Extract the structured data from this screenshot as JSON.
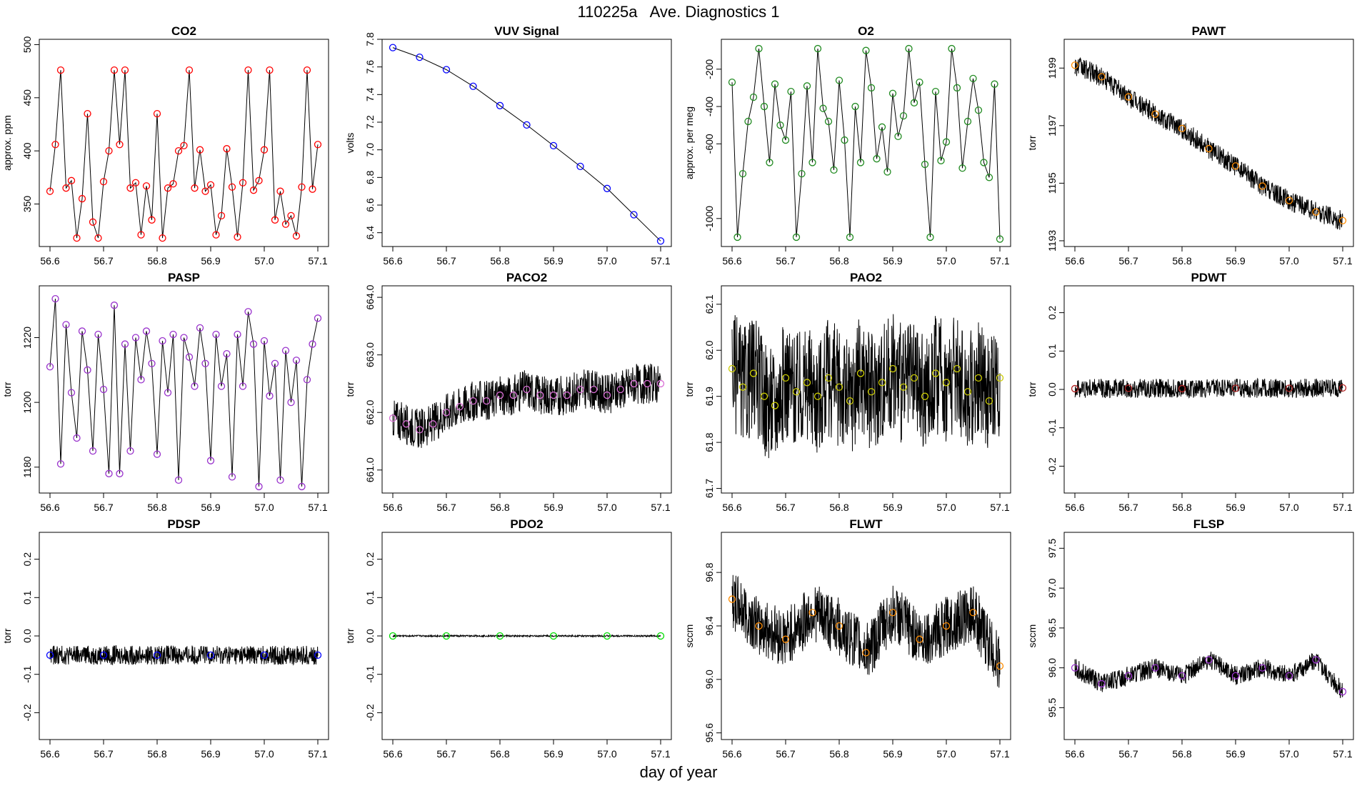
{
  "page": {
    "title": "110225a   Ave. Diagnostics 1",
    "xlabel": "day of year"
  },
  "chart_data": [
    {
      "type": "line",
      "title": "CO2",
      "ylabel": "approx. ppm",
      "xlim": [
        56.58,
        57.12
      ],
      "ylim": [
        310,
        505
      ],
      "xticks": [
        "56.6",
        "56.7",
        "56.8",
        "56.9",
        "57.0",
        "57.1"
      ],
      "yticks": [
        "350",
        "400",
        "450",
        "500"
      ],
      "color": "#ff0000",
      "x": [
        56.6,
        56.61,
        56.62,
        56.63,
        56.64,
        56.65,
        56.66,
        56.67,
        56.68,
        56.69,
        56.7,
        56.71,
        56.72,
        56.73,
        56.74,
        56.75,
        56.76,
        56.77,
        56.78,
        56.79,
        56.8,
        56.81,
        56.82,
        56.83,
        56.84,
        56.85,
        56.86,
        56.87,
        56.88,
        56.89,
        56.9,
        56.91,
        56.92,
        56.93,
        56.94,
        56.95,
        56.96,
        56.97,
        56.98,
        56.99,
        57.0,
        57.01,
        57.02,
        57.03,
        57.04,
        57.05,
        57.06,
        57.07,
        57.08,
        57.09,
        57.1
      ],
      "y": [
        362,
        406,
        476,
        365,
        372,
        318,
        355,
        435,
        333,
        318,
        371,
        400,
        476,
        406,
        476,
        365,
        370,
        321,
        367,
        335,
        435,
        318,
        365,
        369,
        400,
        405,
        476,
        365,
        401,
        362,
        368,
        321,
        339,
        402,
        366,
        319,
        370,
        476,
        363,
        372,
        401,
        476,
        335,
        362,
        331,
        339,
        320,
        366,
        476,
        364,
        406
      ]
    },
    {
      "type": "line",
      "title": "VUV Signal",
      "ylabel": "volts",
      "xlim": [
        56.58,
        57.12
      ],
      "ylim": [
        6.3,
        7.8
      ],
      "xticks": [
        "56.6",
        "56.7",
        "56.8",
        "56.9",
        "57.0",
        "57.1"
      ],
      "yticks": [
        "6.4",
        "6.6",
        "6.8",
        "7.0",
        "7.2",
        "7.4",
        "7.6",
        "7.8"
      ],
      "color": "#0000ff",
      "x": [
        56.6,
        56.65,
        56.7,
        56.75,
        56.8,
        56.85,
        56.9,
        56.95,
        57.0,
        57.05,
        57.1
      ],
      "y": [
        7.74,
        7.67,
        7.58,
        7.46,
        7.32,
        7.18,
        7.03,
        6.88,
        6.72,
        6.53,
        6.34
      ]
    },
    {
      "type": "line",
      "title": "O2",
      "ylabel": "approx. per meg",
      "xlim": [
        56.58,
        57.12
      ],
      "ylim": [
        -1150,
        -40
      ],
      "xticks": [
        "56.6",
        "56.7",
        "56.8",
        "56.9",
        "57.0",
        "57.1"
      ],
      "yticks": [
        "-1000",
        "-600",
        "-400",
        "-200"
      ],
      "color": "#228b22",
      "x": [
        56.6,
        56.61,
        56.62,
        56.63,
        56.64,
        56.65,
        56.66,
        56.67,
        56.68,
        56.69,
        56.7,
        56.71,
        56.72,
        56.73,
        56.74,
        56.75,
        56.76,
        56.77,
        56.78,
        56.79,
        56.8,
        56.81,
        56.82,
        56.83,
        56.84,
        56.85,
        56.86,
        56.87,
        56.88,
        56.89,
        56.9,
        56.91,
        56.92,
        56.93,
        56.94,
        56.95,
        56.96,
        56.97,
        56.98,
        56.99,
        57.0,
        57.01,
        57.02,
        57.03,
        57.04,
        57.05,
        57.06,
        57.07,
        57.08,
        57.09,
        57.1
      ],
      "y": [
        -270,
        -1100,
        -760,
        -480,
        -350,
        -90,
        -400,
        -700,
        -280,
        -500,
        -580,
        -320,
        -1100,
        -760,
        -290,
        -700,
        -90,
        -410,
        -480,
        -740,
        -260,
        -580,
        -1100,
        -400,
        -700,
        -100,
        -300,
        -680,
        -510,
        -750,
        -330,
        -560,
        -450,
        -90,
        -380,
        -270,
        -710,
        -1100,
        -320,
        -690,
        -590,
        -90,
        -300,
        -730,
        -480,
        -250,
        -420,
        -700,
        -780,
        -280,
        -1110
      ]
    },
    {
      "type": "line",
      "title": "PAWT",
      "ylabel": "torr",
      "xlim": [
        56.58,
        57.12
      ],
      "ylim": [
        1192.8,
        1200
      ],
      "xticks": [
        "56.6",
        "56.7",
        "56.8",
        "56.9",
        "57.0",
        "57.1"
      ],
      "yticks": [
        "1193",
        "1195",
        "1197",
        "1199"
      ],
      "color": "#ff8c00",
      "x": [
        56.6,
        56.65,
        56.7,
        56.75,
        56.8,
        56.85,
        56.9,
        56.95,
        57.0,
        57.05,
        57.1
      ],
      "y": [
        1199.1,
        1198.7,
        1198.0,
        1197.4,
        1196.9,
        1196.2,
        1195.6,
        1194.9,
        1194.4,
        1194.0,
        1193.7
      ]
    },
    {
      "type": "line",
      "title": "PASP",
      "ylabel": "torr",
      "xlim": [
        56.58,
        57.12
      ],
      "ylim": [
        1172,
        1236
      ],
      "xticks": [
        "56.6",
        "56.7",
        "56.8",
        "56.9",
        "57.0",
        "57.1"
      ],
      "yticks": [
        "1180",
        "1200",
        "1220"
      ],
      "color": "#9932cc",
      "x": [
        56.6,
        56.61,
        56.62,
        56.63,
        56.64,
        56.65,
        56.66,
        56.67,
        56.68,
        56.69,
        56.7,
        56.71,
        56.72,
        56.73,
        56.74,
        56.75,
        56.76,
        56.77,
        56.78,
        56.79,
        56.8,
        56.81,
        56.82,
        56.83,
        56.84,
        56.85,
        56.86,
        56.87,
        56.88,
        56.89,
        56.9,
        56.91,
        56.92,
        56.93,
        56.94,
        56.95,
        56.96,
        56.97,
        56.98,
        56.99,
        57.0,
        57.01,
        57.02,
        57.03,
        57.04,
        57.05,
        57.06,
        57.07,
        57.08,
        57.09,
        57.1
      ],
      "y": [
        1211,
        1232,
        1181,
        1224,
        1203,
        1189,
        1222,
        1210,
        1185,
        1221,
        1204,
        1178,
        1230,
        1178,
        1218,
        1185,
        1220,
        1207,
        1222,
        1212,
        1184,
        1219,
        1203,
        1221,
        1176,
        1220,
        1214,
        1205,
        1223,
        1212,
        1182,
        1221,
        1205,
        1215,
        1177,
        1221,
        1205,
        1228,
        1218,
        1174,
        1219,
        1202,
        1212,
        1176,
        1216,
        1200,
        1213,
        1174,
        1207,
        1218,
        1226
      ]
    },
    {
      "type": "line",
      "title": "PACO2",
      "ylabel": "torr",
      "xlim": [
        56.58,
        57.12
      ],
      "ylim": [
        660.6,
        664.2
      ],
      "xticks": [
        "56.6",
        "56.7",
        "56.8",
        "56.9",
        "57.0",
        "57.1"
      ],
      "yticks": [
        "661.0",
        "662.0",
        "663.0",
        "664.0"
      ],
      "color": "#da70d6",
      "x": [
        56.6,
        56.625,
        56.65,
        56.675,
        56.7,
        56.725,
        56.75,
        56.775,
        56.8,
        56.825,
        56.85,
        56.875,
        56.9,
        56.925,
        56.95,
        56.975,
        57.0,
        57.025,
        57.05,
        57.075,
        57.1
      ],
      "y": [
        661.9,
        661.8,
        661.7,
        661.8,
        662.0,
        662.1,
        662.2,
        662.2,
        662.3,
        662.3,
        662.4,
        662.3,
        662.3,
        662.3,
        662.4,
        662.4,
        662.3,
        662.4,
        662.5,
        662.5,
        662.5
      ]
    },
    {
      "type": "scatter",
      "title": "PAO2",
      "ylabel": "torr",
      "xlim": [
        56.58,
        57.12
      ],
      "ylim": [
        61.69,
        62.14
      ],
      "xticks": [
        "56.6",
        "56.7",
        "56.8",
        "56.9",
        "57.0",
        "57.1"
      ],
      "yticks": [
        "61.7",
        "61.8",
        "61.9",
        "62.0",
        "62.1"
      ],
      "color": "#cccc00",
      "x": [
        56.6,
        56.62,
        56.64,
        56.66,
        56.68,
        56.7,
        56.72,
        56.74,
        56.76,
        56.78,
        56.8,
        56.82,
        56.84,
        56.86,
        56.88,
        56.9,
        56.92,
        56.94,
        56.96,
        56.98,
        57.0,
        57.02,
        57.04,
        57.06,
        57.08,
        57.1
      ],
      "y": [
        61.96,
        61.92,
        61.95,
        61.9,
        61.88,
        61.94,
        61.91,
        61.93,
        61.9,
        61.94,
        61.92,
        61.89,
        61.95,
        61.91,
        61.93,
        61.96,
        61.92,
        61.94,
        61.9,
        61.95,
        61.93,
        61.96,
        61.91,
        61.94,
        61.89,
        61.94
      ]
    },
    {
      "type": "line",
      "title": "PDWT",
      "ylabel": "torr",
      "xlim": [
        56.58,
        57.12
      ],
      "ylim": [
        -0.27,
        0.27
      ],
      "xticks": [
        "56.6",
        "56.7",
        "56.8",
        "56.9",
        "57.0",
        "57.1"
      ],
      "yticks": [
        "-0.2",
        "-0.1",
        "0.0",
        "0.1",
        "0.2"
      ],
      "color": "#b22222",
      "x": [
        56.6,
        56.7,
        56.8,
        56.9,
        57.0,
        57.1
      ],
      "y": [
        0.002,
        0.003,
        0.002,
        0.003,
        0.003,
        0.004
      ]
    },
    {
      "type": "line",
      "title": "PDSP",
      "ylabel": "torr",
      "xlim": [
        56.58,
        57.12
      ],
      "ylim": [
        -0.27,
        0.27
      ],
      "xticks": [
        "56.6",
        "56.7",
        "56.8",
        "56.9",
        "57.0",
        "57.1"
      ],
      "yticks": [
        "-0.2",
        "-0.1",
        "0.0",
        "0.1",
        "0.2"
      ],
      "color": "#0000ff",
      "x": [
        56.6,
        56.7,
        56.8,
        56.9,
        57.0,
        57.1
      ],
      "y": [
        -0.05,
        -0.05,
        -0.05,
        -0.05,
        -0.05,
        -0.05
      ]
    },
    {
      "type": "line",
      "title": "PDO2",
      "ylabel": "torr",
      "xlim": [
        56.58,
        57.12
      ],
      "ylim": [
        -0.27,
        0.27
      ],
      "xticks": [
        "56.6",
        "56.7",
        "56.8",
        "56.9",
        "57.0",
        "57.1"
      ],
      "yticks": [
        "-0.2",
        "-0.1",
        "0.0",
        "0.1",
        "0.2"
      ],
      "color": "#00dd00",
      "x": [
        56.6,
        56.7,
        56.8,
        56.9,
        57.0,
        57.1
      ],
      "y": [
        0.0,
        0.0,
        0.0,
        0.0,
        0.0,
        0.0
      ]
    },
    {
      "type": "line",
      "title": "FLWT",
      "ylabel": "sccm",
      "xlim": [
        56.58,
        57.12
      ],
      "ylim": [
        95.55,
        97.1
      ],
      "xticks": [
        "56.6",
        "56.7",
        "56.8",
        "56.9",
        "57.0",
        "57.1"
      ],
      "yticks": [
        "95.6",
        "96.0",
        "96.4",
        "96.8"
      ],
      "color": "#ff8c00",
      "x": [
        56.6,
        56.65,
        56.7,
        56.75,
        56.8,
        56.85,
        56.9,
        56.95,
        57.0,
        57.05,
        57.1
      ],
      "y": [
        96.6,
        96.4,
        96.3,
        96.5,
        96.4,
        96.2,
        96.5,
        96.3,
        96.4,
        96.5,
        96.1
      ]
    },
    {
      "type": "line",
      "title": "FLSP",
      "ylabel": "sccm",
      "xlim": [
        56.58,
        57.12
      ],
      "ylim": [
        95.1,
        97.7
      ],
      "xticks": [
        "56.6",
        "56.7",
        "56.8",
        "56.9",
        "57.0",
        "57.1"
      ],
      "yticks": [
        "95.5",
        "96.0",
        "96.5",
        "97.0",
        "97.5"
      ],
      "color": "#9932cc",
      "x": [
        56.6,
        56.65,
        56.7,
        56.75,
        56.8,
        56.85,
        56.9,
        56.95,
        57.0,
        57.05,
        57.1
      ],
      "y": [
        96.0,
        95.8,
        95.9,
        96.0,
        95.9,
        96.1,
        95.9,
        96.0,
        95.9,
        96.1,
        95.7
      ]
    }
  ]
}
